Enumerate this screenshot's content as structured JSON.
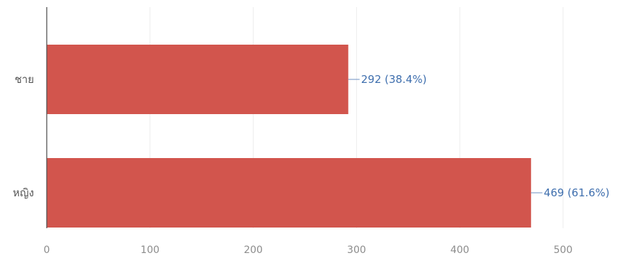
{
  "chart_data": {
    "type": "bar",
    "orientation": "horizontal",
    "categories": [
      "ชาย",
      "หญิง"
    ],
    "values": [
      292,
      469
    ],
    "data_labels": [
      "292 (38.4%)",
      "469 (61.6%)"
    ],
    "xlim": [
      0,
      500
    ],
    "x_ticks": [
      0,
      100,
      200,
      300,
      400,
      500
    ],
    "grid": true,
    "legend": "none",
    "colors": {
      "bar": "#d2554d",
      "data_label": "#3f6fae"
    }
  }
}
